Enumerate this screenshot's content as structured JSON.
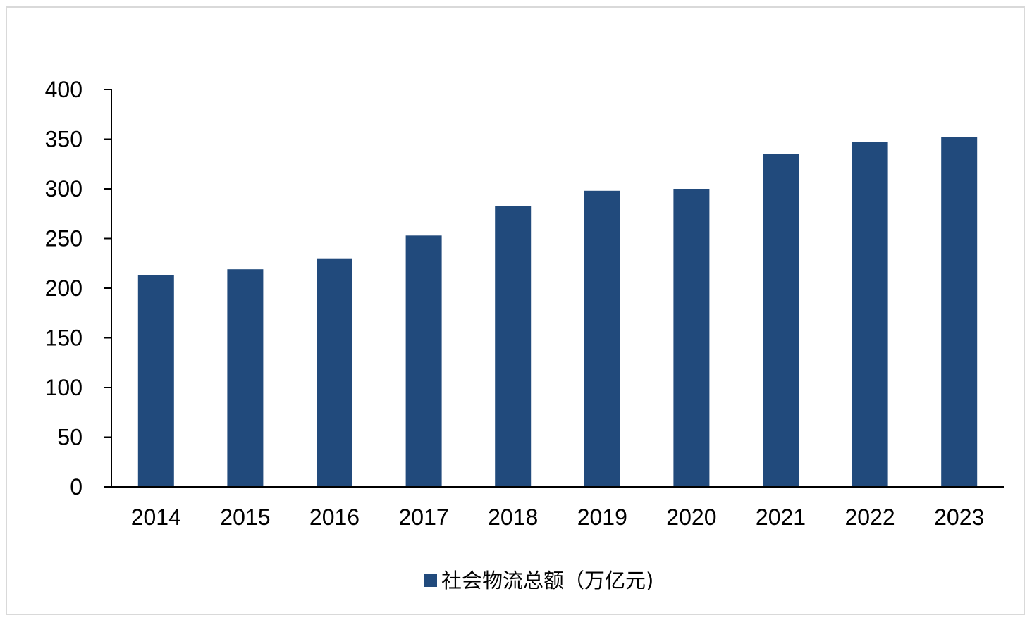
{
  "chart_data": {
    "type": "bar",
    "categories": [
      "2014",
      "2015",
      "2016",
      "2017",
      "2018",
      "2019",
      "2020",
      "2021",
      "2022",
      "2023"
    ],
    "series": [
      {
        "name": "社会物流总额（万亿元)",
        "color": "#214a7c",
        "values": [
          213,
          219,
          230,
          253,
          283,
          298,
          300,
          335,
          347,
          352
        ]
      }
    ],
    "yticks": [
      "0",
      "50",
      "100",
      "150",
      "200",
      "250",
      "300",
      "350",
      "400"
    ],
    "ylim": [
      0,
      400
    ],
    "xlabel": "",
    "ylabel": "",
    "grid": false,
    "legend_position": "bottom-center"
  }
}
